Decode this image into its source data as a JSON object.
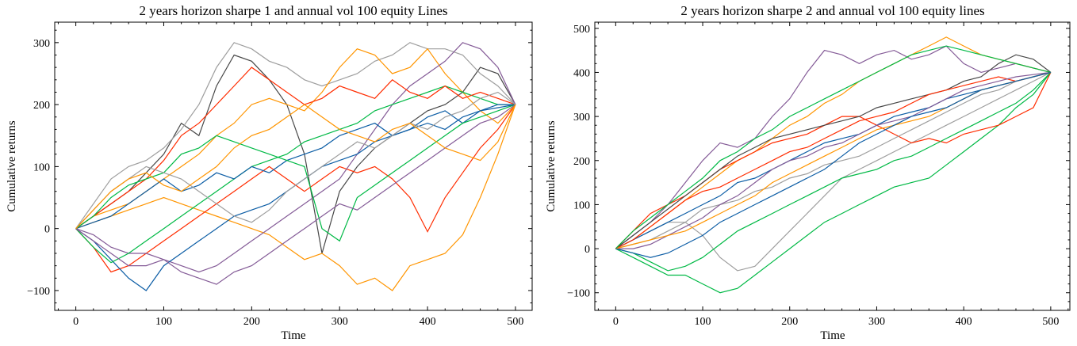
{
  "chart_data": [
    {
      "type": "line",
      "title": "2 years horizon sharpe 1 and annual vol 100 equity Lines",
      "xlabel": "Time",
      "ylabel": "Cumulative returns",
      "xlim": [
        -24,
        519
      ],
      "ylim": [
        -132,
        333
      ],
      "xticks": [
        0,
        100,
        200,
        300,
        400,
        500
      ],
      "yticks": [
        -100,
        0,
        100,
        200,
        300
      ],
      "grid": false,
      "legend": "none",
      "x": [
        0,
        20,
        40,
        60,
        80,
        100,
        120,
        140,
        160,
        180,
        200,
        220,
        240,
        260,
        280,
        300,
        320,
        340,
        360,
        380,
        400,
        420,
        440,
        460,
        480,
        500
      ],
      "series": [
        {
          "color": "#474747",
          "values": [
            0,
            20,
            40,
            60,
            90,
            120,
            170,
            150,
            230,
            280,
            270,
            240,
            200,
            120,
            -40,
            60,
            100,
            130,
            150,
            170,
            190,
            200,
            220,
            260,
            250,
            200
          ]
        },
        {
          "color": "#FF9500",
          "values": [
            0,
            10,
            20,
            30,
            40,
            50,
            40,
            30,
            20,
            10,
            0,
            -10,
            -30,
            -50,
            -40,
            -60,
            -90,
            -80,
            -100,
            -60,
            -50,
            -40,
            -10,
            50,
            120,
            200
          ]
        },
        {
          "color": "#FF2C00",
          "values": [
            0,
            -30,
            -70,
            -60,
            -40,
            -20,
            0,
            20,
            40,
            60,
            80,
            100,
            80,
            60,
            80,
            100,
            90,
            100,
            80,
            50,
            -5,
            50,
            90,
            130,
            160,
            200
          ]
        },
        {
          "color": "#9e9e9e",
          "values": [
            0,
            40,
            80,
            100,
            110,
            130,
            160,
            200,
            260,
            300,
            290,
            270,
            260,
            240,
            230,
            240,
            250,
            270,
            280,
            300,
            290,
            290,
            280,
            250,
            230,
            200
          ]
        },
        {
          "color": "#FF9500",
          "values": [
            0,
            20,
            30,
            40,
            60,
            80,
            100,
            120,
            150,
            170,
            200,
            210,
            200,
            190,
            220,
            260,
            290,
            280,
            250,
            260,
            290,
            250,
            220,
            190,
            170,
            200
          ]
        },
        {
          "color": "#845B97",
          "values": [
            0,
            -10,
            -30,
            -40,
            -40,
            -50,
            -60,
            -70,
            -60,
            -40,
            -20,
            0,
            20,
            40,
            60,
            80,
            120,
            160,
            200,
            230,
            250,
            270,
            300,
            290,
            260,
            200
          ]
        },
        {
          "color": "#0C5DA5",
          "values": [
            0,
            -20,
            -50,
            -80,
            -100,
            -60,
            -40,
            -20,
            0,
            20,
            30,
            40,
            60,
            80,
            100,
            110,
            120,
            140,
            150,
            160,
            170,
            160,
            180,
            190,
            195,
            200
          ]
        },
        {
          "color": "#00B945",
          "values": [
            0,
            -30,
            -55,
            -40,
            -20,
            0,
            20,
            40,
            60,
            80,
            100,
            110,
            120,
            140,
            150,
            160,
            170,
            190,
            200,
            210,
            220,
            230,
            220,
            210,
            200,
            200
          ]
        },
        {
          "color": "#FF2C00",
          "values": [
            0,
            20,
            40,
            60,
            80,
            110,
            150,
            170,
            200,
            230,
            260,
            240,
            220,
            200,
            210,
            230,
            220,
            210,
            240,
            220,
            210,
            230,
            210,
            220,
            210,
            200
          ]
        },
        {
          "color": "#0C5DA5",
          "values": [
            0,
            10,
            20,
            40,
            60,
            80,
            60,
            70,
            90,
            80,
            100,
            90,
            110,
            120,
            130,
            150,
            160,
            170,
            150,
            160,
            180,
            190,
            170,
            190,
            200,
            200
          ]
        },
        {
          "color": "#00B945",
          "values": [
            0,
            20,
            50,
            70,
            80,
            90,
            120,
            130,
            150,
            140,
            130,
            120,
            110,
            100,
            0,
            -20,
            50,
            70,
            90,
            110,
            130,
            150,
            170,
            180,
            190,
            200
          ]
        },
        {
          "color": "#845B97",
          "values": [
            0,
            -20,
            -40,
            -60,
            -60,
            -50,
            -70,
            -80,
            -90,
            -70,
            -60,
            -40,
            -20,
            0,
            20,
            40,
            30,
            50,
            70,
            90,
            110,
            130,
            150,
            170,
            180,
            200
          ]
        },
        {
          "color": "#9e9e9e",
          "values": [
            0,
            30,
            60,
            80,
            100,
            90,
            80,
            60,
            40,
            20,
            10,
            30,
            60,
            80,
            100,
            120,
            140,
            130,
            150,
            170,
            160,
            180,
            190,
            210,
            220,
            200
          ]
        },
        {
          "color": "#FF9500",
          "values": [
            0,
            30,
            60,
            80,
            90,
            70,
            60,
            80,
            100,
            130,
            150,
            160,
            180,
            200,
            180,
            160,
            150,
            140,
            160,
            170,
            150,
            130,
            120,
            110,
            140,
            200
          ]
        }
      ]
    },
    {
      "type": "line",
      "title": "2 years horizon sharpe 2 and annual vol 100 equity lines",
      "xlabel": "Time",
      "ylabel": "Cumulative returns",
      "xlim": [
        -24,
        522
      ],
      "ylim": [
        -140,
        514
      ],
      "xticks": [
        0,
        100,
        200,
        300,
        400,
        500
      ],
      "yticks": [
        -100,
        0,
        100,
        200,
        300,
        400,
        500
      ],
      "grid": false,
      "legend": "none",
      "x": [
        0,
        20,
        40,
        60,
        80,
        100,
        120,
        140,
        160,
        180,
        200,
        220,
        240,
        260,
        280,
        300,
        320,
        340,
        360,
        380,
        400,
        420,
        440,
        460,
        480,
        500
      ],
      "series": [
        {
          "color": "#845B97",
          "values": [
            0,
            30,
            60,
            100,
            150,
            200,
            240,
            230,
            250,
            300,
            340,
            400,
            450,
            440,
            420,
            440,
            450,
            430,
            440,
            460,
            420,
            400,
            410,
            420,
            410,
            400
          ]
        },
        {
          "color": "#FF9500",
          "values": [
            0,
            20,
            50,
            80,
            110,
            140,
            170,
            200,
            220,
            250,
            280,
            300,
            330,
            350,
            380,
            400,
            420,
            440,
            460,
            480,
            460,
            440,
            430,
            420,
            410,
            400
          ]
        },
        {
          "color": "#00B945",
          "values": [
            0,
            -20,
            -40,
            -60,
            -60,
            -80,
            -100,
            -90,
            -60,
            -30,
            0,
            30,
            60,
            80,
            100,
            120,
            140,
            150,
            160,
            190,
            220,
            250,
            280,
            320,
            350,
            400
          ]
        },
        {
          "color": "#9e9e9e",
          "values": [
            0,
            20,
            40,
            60,
            60,
            30,
            -20,
            -50,
            -40,
            0,
            40,
            80,
            120,
            160,
            180,
            200,
            220,
            240,
            260,
            280,
            300,
            320,
            340,
            360,
            380,
            400
          ]
        },
        {
          "color": "#FF2C00",
          "values": [
            0,
            40,
            80,
            100,
            120,
            150,
            180,
            200,
            220,
            240,
            250,
            260,
            280,
            300,
            300,
            280,
            260,
            240,
            250,
            240,
            260,
            270,
            280,
            300,
            320,
            400
          ]
        },
        {
          "color": "#00B945",
          "values": [
            0,
            -10,
            -30,
            -50,
            -40,
            -20,
            10,
            40,
            60,
            80,
            100,
            120,
            140,
            160,
            170,
            180,
            200,
            210,
            230,
            250,
            270,
            290,
            310,
            330,
            360,
            400
          ]
        },
        {
          "color": "#0C5DA5",
          "values": [
            0,
            20,
            40,
            60,
            80,
            100,
            120,
            150,
            160,
            180,
            200,
            220,
            240,
            250,
            260,
            280,
            300,
            310,
            320,
            340,
            350,
            360,
            370,
            380,
            390,
            400
          ]
        },
        {
          "color": "#474747",
          "values": [
            0,
            30,
            60,
            90,
            120,
            150,
            180,
            210,
            230,
            250,
            260,
            270,
            280,
            290,
            300,
            320,
            330,
            340,
            350,
            360,
            380,
            390,
            420,
            440,
            430,
            400
          ]
        },
        {
          "color": "#FF2C00",
          "values": [
            0,
            20,
            50,
            80,
            110,
            130,
            140,
            160,
            180,
            200,
            220,
            230,
            250,
            270,
            290,
            300,
            310,
            330,
            350,
            360,
            370,
            380,
            390,
            380,
            390,
            400
          ]
        },
        {
          "color": "#9e9e9e",
          "values": [
            0,
            10,
            20,
            40,
            60,
            90,
            100,
            110,
            130,
            140,
            160,
            170,
            190,
            200,
            210,
            230,
            250,
            270,
            290,
            310,
            330,
            350,
            360,
            380,
            390,
            400
          ]
        },
        {
          "color": "#845B97",
          "values": [
            0,
            0,
            10,
            30,
            50,
            70,
            100,
            120,
            150,
            180,
            200,
            210,
            230,
            240,
            260,
            280,
            290,
            300,
            320,
            340,
            360,
            370,
            380,
            390,
            395,
            400
          ]
        },
        {
          "color": "#00B945",
          "values": [
            0,
            40,
            70,
            100,
            130,
            160,
            200,
            220,
            250,
            270,
            300,
            320,
            340,
            360,
            380,
            400,
            420,
            440,
            450,
            460,
            450,
            440,
            430,
            420,
            410,
            400
          ]
        },
        {
          "color": "#FF9500",
          "values": [
            0,
            10,
            20,
            30,
            40,
            60,
            80,
            100,
            120,
            150,
            170,
            190,
            210,
            230,
            250,
            270,
            280,
            290,
            300,
            320,
            340,
            360,
            370,
            380,
            390,
            400
          ]
        },
        {
          "color": "#0C5DA5",
          "values": [
            0,
            -10,
            -20,
            -10,
            10,
            30,
            60,
            80,
            100,
            120,
            140,
            160,
            180,
            210,
            240,
            260,
            280,
            300,
            310,
            320,
            340,
            360,
            370,
            380,
            390,
            400
          ]
        }
      ]
    }
  ]
}
